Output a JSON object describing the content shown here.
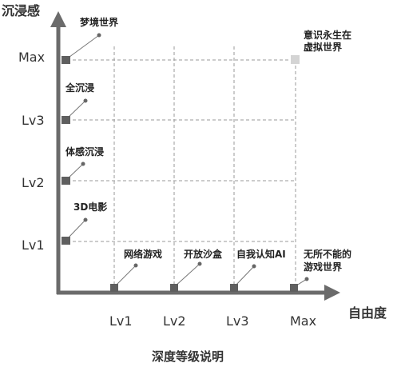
{
  "y_axis": {
    "title": "沉浸感",
    "ticks": [
      "Lv1",
      "Lv2",
      "Lv3",
      "Max"
    ],
    "annotations": [
      "3D电影",
      "体感沉浸",
      "全沉浸",
      "梦境世界"
    ]
  },
  "x_axis": {
    "title": "自由度",
    "ticks": [
      "Lv1",
      "Lv2",
      "Lv3",
      "Max"
    ],
    "annotations": [
      "网络游戏",
      "开放沙盒",
      "自我认知AI",
      "无所不能的",
      "游戏世界"
    ]
  },
  "corner_annotation": [
    "意识永生在",
    "虚拟世界"
  ],
  "caption": "深度等级说明",
  "colors": {
    "axis": "#6b6b6b",
    "marker": "#5f5f5f",
    "grid": "#999999",
    "corner_point": "#d4d4d4"
  }
}
